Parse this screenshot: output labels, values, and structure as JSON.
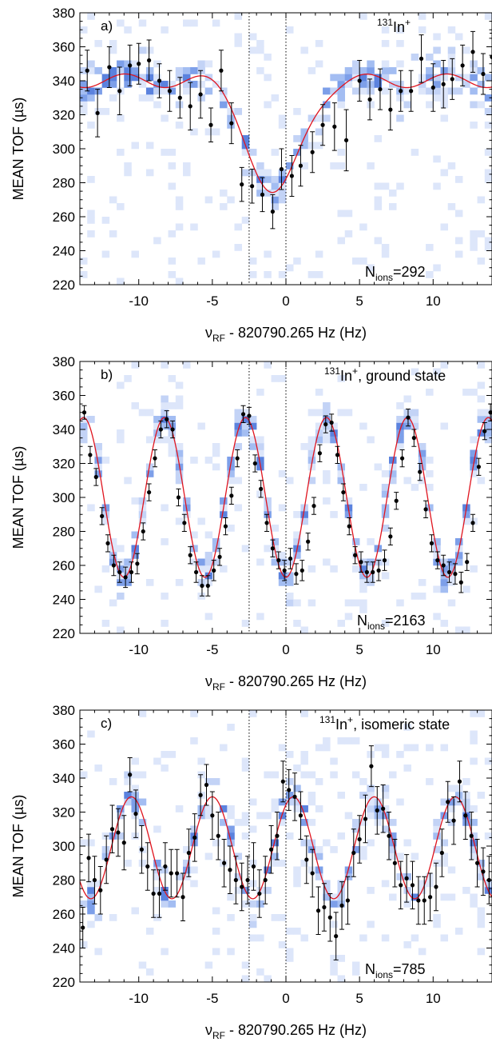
{
  "chart_data": [
    {
      "type": "scatter",
      "panel_label": "a)",
      "isotope_mass": "131",
      "isotope_element": "In",
      "isotope_charge": "+",
      "state_label": "",
      "nions_prefix": "N",
      "nions_sub": "ions",
      "nions_value": "=292",
      "ylabel": "MEAN TOF (µs)",
      "xlabel_nu": "ν",
      "xlabel_sub": "RF",
      "xlabel_rest": " - 820790.265 Hz (Hz)",
      "xlim": [
        -14,
        14
      ],
      "ylim": [
        220,
        380
      ],
      "xticks": [
        -10,
        -5,
        0,
        5,
        10
      ],
      "yticks": [
        220,
        240,
        260,
        280,
        300,
        320,
        340,
        360,
        380
      ],
      "vlines": [
        -2.5,
        0
      ],
      "fit": {
        "type": "single",
        "center": -0.75,
        "width": 2.4,
        "base": 340,
        "depth": 68
      },
      "series": {
        "x": [
          -13.5,
          -12.8,
          -12.0,
          -11.3,
          -10.6,
          -10.0,
          -9.3,
          -8.6,
          -7.9,
          -7.2,
          -6.5,
          -5.8,
          -5.1,
          -4.4,
          -3.7,
          -3.0,
          -2.3,
          -1.6,
          -0.9,
          -0.3,
          0.4,
          1.0,
          1.8,
          2.5,
          3.3,
          4.1,
          5.0,
          5.7,
          6.4,
          7.1,
          7.8,
          8.5,
          9.2,
          10.0,
          10.7,
          11.3,
          12.0,
          12.7,
          13.4,
          14.0
        ],
        "y": [
          346,
          321,
          348,
          334,
          349,
          350,
          352,
          340,
          334,
          330,
          325,
          332,
          314,
          346,
          315,
          279,
          278,
          273,
          263,
          288,
          284,
          290,
          298,
          314,
          313,
          305,
          340,
          329,
          335,
          323,
          334,
          334,
          353,
          336,
          338,
          341,
          349,
          357,
          344,
          354
        ],
        "err": [
          12,
          14,
          12,
          14,
          12,
          12,
          12,
          10,
          12,
          12,
          14,
          14,
          10,
          12,
          12,
          10,
          10,
          10,
          10,
          12,
          12,
          12,
          12,
          12,
          14,
          18,
          12,
          12,
          12,
          12,
          12,
          12,
          14,
          14,
          14,
          12,
          12,
          12,
          12,
          14
        ]
      }
    },
    {
      "type": "scatter",
      "panel_label": "b)",
      "isotope_mass": "131",
      "isotope_element": "In",
      "isotope_charge": "+",
      "state_label": ", ground state",
      "nions_prefix": "N",
      "nions_sub": "ions",
      "nions_value": "=2163",
      "ylabel": "MEAN TOF (µs)",
      "xlabel_nu": "ν",
      "xlabel_sub": "RF",
      "xlabel_rest": " - 820790.265 Hz (Hz)",
      "xlim": [
        -14,
        14
      ],
      "ylim": [
        220,
        380
      ],
      "xticks": [
        -10,
        -5,
        0,
        5,
        10
      ],
      "yticks": [
        220,
        240,
        260,
        280,
        300,
        320,
        340,
        360,
        380
      ],
      "vlines": [
        -2.5,
        0
      ],
      "fit": {
        "type": "osc",
        "mean": 300,
        "amp": 47,
        "period": 5.5,
        "phase": 2.75
      },
      "series": {
        "x": [
          -13.7,
          -13.3,
          -12.9,
          -12.5,
          -12.1,
          -11.7,
          -11.3,
          -10.9,
          -10.5,
          -10.1,
          -9.7,
          -9.3,
          -8.9,
          -8.5,
          -8.1,
          -7.7,
          -7.3,
          -6.9,
          -6.5,
          -6.1,
          -5.7,
          -5.3,
          -4.9,
          -4.5,
          -4.1,
          -3.7,
          -3.3,
          -2.9,
          -2.5,
          -2.1,
          -1.7,
          -1.3,
          -0.9,
          -0.5,
          -0.1,
          0.3,
          0.7,
          1.1,
          1.5,
          1.9,
          2.3,
          2.7,
          3.1,
          3.5,
          3.9,
          4.3,
          4.7,
          5.1,
          5.5,
          5.9,
          6.3,
          6.7,
          7.1,
          7.5,
          7.9,
          8.3,
          8.7,
          9.1,
          9.5,
          9.9,
          10.3,
          10.7,
          11.1,
          11.5,
          11.9,
          12.3,
          12.7,
          13.1,
          13.5,
          13.9
        ],
        "y": [
          350,
          325,
          312,
          289,
          273,
          260,
          256,
          253,
          256,
          261,
          280,
          303,
          323,
          340,
          346,
          340,
          300,
          285,
          266,
          256,
          248,
          248,
          257,
          265,
          283,
          301,
          323,
          349,
          348,
          320,
          305,
          285,
          270,
          263,
          257,
          264,
          255,
          257,
          274,
          295,
          326,
          343,
          344,
          325,
          303,
          283,
          266,
          262,
          256,
          256,
          257,
          263,
          277,
          298,
          323,
          347,
          335,
          315,
          293,
          273,
          263,
          260,
          256,
          255,
          250,
          262,
          285,
          318,
          339,
          350
        ],
        "err": [
          4,
          5,
          5,
          5,
          5,
          6,
          6,
          6,
          6,
          6,
          5,
          5,
          5,
          5,
          5,
          5,
          5,
          5,
          5,
          6,
          6,
          6,
          6,
          5,
          5,
          5,
          5,
          5,
          5,
          5,
          5,
          5,
          5,
          5,
          6,
          6,
          6,
          6,
          5,
          5,
          5,
          5,
          5,
          5,
          5,
          5,
          5,
          6,
          6,
          6,
          6,
          6,
          5,
          5,
          5,
          5,
          5,
          5,
          5,
          5,
          5,
          6,
          6,
          6,
          6,
          5,
          5,
          5,
          5,
          5
        ]
      }
    },
    {
      "type": "scatter",
      "panel_label": "c)",
      "isotope_mass": "131",
      "isotope_element": "In",
      "isotope_charge": "+",
      "state_label": ", isomeric state",
      "nions_prefix": "N",
      "nions_sub": "ions",
      "nions_value": "=785",
      "ylabel": "MEAN TOF (µs)",
      "xlabel_nu": "ν",
      "xlabel_sub": "RF",
      "xlabel_rest": " - 820790.265 Hz (Hz)",
      "xlim": [
        -14,
        14
      ],
      "ylim": [
        220,
        380
      ],
      "xticks": [
        -10,
        -5,
        0,
        5,
        10
      ],
      "yticks": [
        220,
        240,
        260,
        280,
        300,
        320,
        340,
        360,
        380
      ],
      "vlines": [
        -2.5,
        0
      ],
      "fit": {
        "type": "osc",
        "mean": 299,
        "amp": 30,
        "period": 5.5,
        "phase": 0.5
      },
      "series": {
        "x": [
          -13.8,
          -13.4,
          -13.0,
          -12.6,
          -12.2,
          -11.8,
          -11.4,
          -11.0,
          -10.6,
          -10.2,
          -9.8,
          -9.4,
          -9.0,
          -8.6,
          -8.2,
          -7.8,
          -7.4,
          -7.0,
          -6.6,
          -6.2,
          -5.8,
          -5.4,
          -5.0,
          -4.6,
          -4.2,
          -3.8,
          -3.4,
          -3.0,
          -2.6,
          -2.2,
          -1.8,
          -1.4,
          -1.0,
          -0.6,
          -0.2,
          0.2,
          0.6,
          1.0,
          1.4,
          1.8,
          2.2,
          2.6,
          3.0,
          3.4,
          3.8,
          4.2,
          4.6,
          5.0,
          5.4,
          5.8,
          6.2,
          6.6,
          7.0,
          7.4,
          7.8,
          8.2,
          8.6,
          9.0,
          9.4,
          9.8,
          10.2,
          10.6,
          11.0,
          11.4,
          11.8,
          12.2,
          12.6,
          13.0,
          13.4,
          13.8
        ],
        "y": [
          252,
          293,
          280,
          274,
          292,
          310,
          308,
          302,
          342,
          319,
          298,
          288,
          272,
          272,
          288,
          284,
          284,
          270,
          296,
          305,
          330,
          336,
          318,
          306,
          290,
          286,
          280,
          276,
          280,
          288,
          272,
          280,
          298,
          306,
          338,
          333,
          329,
          318,
          292,
          284,
          262,
          264,
          258,
          247,
          265,
          268,
          296,
          304,
          316,
          347,
          321,
          322,
          306,
          290,
          277,
          281,
          277,
          268,
          268,
          270,
          276,
          296,
          326,
          315,
          338,
          318,
          306,
          290,
          285,
          280
        ],
        "err": [
          12,
          14,
          14,
          14,
          14,
          14,
          14,
          16,
          10,
          14,
          14,
          14,
          14,
          14,
          14,
          14,
          14,
          14,
          14,
          14,
          12,
          12,
          14,
          14,
          14,
          14,
          14,
          14,
          14,
          14,
          14,
          14,
          14,
          14,
          12,
          12,
          14,
          14,
          14,
          14,
          14,
          14,
          14,
          14,
          14,
          14,
          14,
          14,
          14,
          12,
          14,
          14,
          14,
          14,
          14,
          14,
          14,
          14,
          14,
          14,
          14,
          14,
          12,
          14,
          12,
          14,
          14,
          14,
          14,
          14
        ]
      }
    }
  ]
}
